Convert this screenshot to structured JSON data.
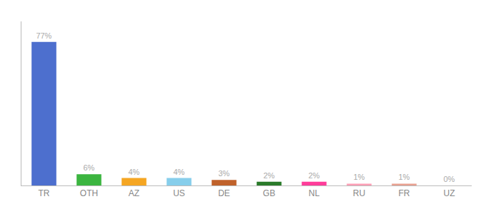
{
  "chart_data": {
    "type": "bar",
    "categories": [
      "TR",
      "OTH",
      "AZ",
      "US",
      "DE",
      "GB",
      "NL",
      "RU",
      "FR",
      "UZ"
    ],
    "values": [
      77,
      6,
      4,
      4,
      3,
      2,
      2,
      1,
      1,
      0
    ],
    "value_labels": [
      "77%",
      "6%",
      "4%",
      "4%",
      "3%",
      "2%",
      "2%",
      "1%",
      "1%",
      "0%"
    ],
    "colors": [
      "#4d6fce",
      "#3cb540",
      "#f5a623",
      "#87ceeb",
      "#c0622b",
      "#2a7a2a",
      "#ff3d9a",
      "#ff9eb5",
      "#e8a090",
      "#e8a090"
    ],
    "ylim": [
      0,
      88
    ],
    "grid": false,
    "tick_labels": "x"
  }
}
